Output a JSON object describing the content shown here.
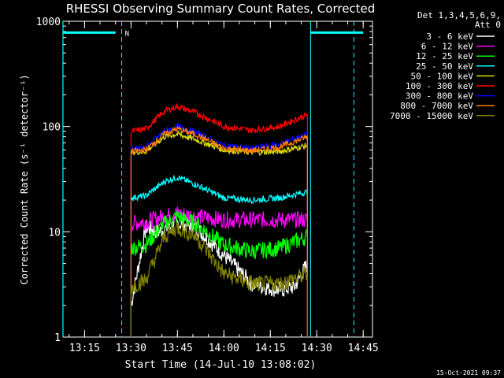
{
  "chart_data": {
    "type": "line",
    "title": "RHESSI Observing Summary Count Rates, Corrected",
    "xlabel": "Start Time (14-Jul-10 13:08:02)",
    "ylabel": "Corrected Count Rate (s⁻¹ detector⁻¹)",
    "y_scale": "log",
    "ylim": [
      1,
      1000
    ],
    "xlim": [
      "13:08:02",
      "14:48:00"
    ],
    "x_ticks": [
      "13:15",
      "13:30",
      "13:45",
      "14:00",
      "14:15",
      "14:30",
      "14:45"
    ],
    "y_ticks": [
      "1",
      "10",
      "100",
      "1000"
    ],
    "grid": false,
    "legend_position": "top-right",
    "legend_header": [
      "Det 1,3,4,5,6,9,",
      "Att 0"
    ],
    "series": [
      {
        "name": "3 - 6 keV",
        "color": "#ffffff",
        "values": [
          [
            13.5,
            2
          ],
          [
            13.58,
            11
          ],
          [
            13.65,
            10
          ],
          [
            13.75,
            12
          ],
          [
            13.85,
            11
          ],
          [
            14.0,
            6
          ],
          [
            14.15,
            3.2
          ],
          [
            14.3,
            2.8
          ],
          [
            14.38,
            3
          ],
          [
            14.42,
            4
          ],
          [
            14.45,
            5
          ]
        ]
      },
      {
        "name": "6 - 12 keV",
        "color": "#ff00ff",
        "values": [
          [
            13.5,
            12
          ],
          [
            13.58,
            12.5
          ],
          [
            13.68,
            14
          ],
          [
            13.75,
            15
          ],
          [
            13.85,
            14
          ],
          [
            14.0,
            13
          ],
          [
            14.15,
            13
          ],
          [
            14.3,
            13
          ],
          [
            14.45,
            13
          ]
        ]
      },
      {
        "name": "12 - 25 keV",
        "color": "#00ff00",
        "values": [
          [
            13.5,
            7
          ],
          [
            13.58,
            7.5
          ],
          [
            13.68,
            12
          ],
          [
            13.75,
            14
          ],
          [
            13.85,
            12
          ],
          [
            14.0,
            7.5
          ],
          [
            14.15,
            6.5
          ],
          [
            14.3,
            7
          ],
          [
            14.45,
            9
          ]
        ]
      },
      {
        "name": "25 - 50 keV",
        "color": "#00ffff",
        "values": [
          [
            13.5,
            21
          ],
          [
            13.58,
            22
          ],
          [
            13.68,
            30
          ],
          [
            13.75,
            33
          ],
          [
            13.85,
            28
          ],
          [
            14.0,
            21
          ],
          [
            14.15,
            20
          ],
          [
            14.3,
            21
          ],
          [
            14.45,
            24
          ]
        ]
      },
      {
        "name": "50 - 100 keV",
        "color": "#dddd00",
        "values": [
          [
            13.5,
            57
          ],
          [
            13.58,
            58
          ],
          [
            13.68,
            80
          ],
          [
            13.75,
            85
          ],
          [
            13.85,
            75
          ],
          [
            14.0,
            60
          ],
          [
            14.15,
            57
          ],
          [
            14.3,
            58
          ],
          [
            14.45,
            66
          ]
        ]
      },
      {
        "name": "100 - 300 keV",
        "color": "#ff0000",
        "values": [
          [
            13.5,
            90
          ],
          [
            13.58,
            95
          ],
          [
            13.68,
            140
          ],
          [
            13.75,
            155
          ],
          [
            13.85,
            135
          ],
          [
            14.0,
            100
          ],
          [
            14.15,
            92
          ],
          [
            14.3,
            100
          ],
          [
            14.45,
            130
          ]
        ]
      },
      {
        "name": "300 - 800 keV",
        "color": "#0000ff",
        "values": [
          [
            13.5,
            62
          ],
          [
            13.58,
            63
          ],
          [
            13.68,
            90
          ],
          [
            13.75,
            100
          ],
          [
            13.85,
            88
          ],
          [
            14.0,
            66
          ],
          [
            14.15,
            62
          ],
          [
            14.3,
            68
          ],
          [
            14.45,
            85
          ]
        ]
      },
      {
        "name": "800 - 7000 keV",
        "color": "#ff8000",
        "values": [
          [
            13.5,
            58
          ],
          [
            13.58,
            60
          ],
          [
            13.68,
            85
          ],
          [
            13.75,
            95
          ],
          [
            13.85,
            84
          ],
          [
            14.0,
            62
          ],
          [
            14.15,
            59
          ],
          [
            14.3,
            64
          ],
          [
            14.45,
            80
          ]
        ]
      },
      {
        "name": "7000 - 15000 keV",
        "color": "#808000",
        "values": [
          [
            13.5,
            3
          ],
          [
            13.58,
            3.5
          ],
          [
            13.68,
            9
          ],
          [
            13.75,
            11
          ],
          [
            13.85,
            9
          ],
          [
            14.0,
            4
          ],
          [
            14.15,
            3.2
          ],
          [
            14.3,
            3.2
          ],
          [
            14.45,
            4
          ]
        ]
      }
    ],
    "annotations": {
      "night_segments": [
        [
          "13:08",
          "13:25"
        ],
        [
          "14:28",
          "14:45"
        ]
      ],
      "night_level": 780,
      "saa_marker": "N",
      "saa_marker_time": "13:27",
      "dashed_lines": [
        "13:27",
        "14:42"
      ],
      "solid_lines": [
        "13:08",
        "14:28"
      ]
    }
  },
  "footer": {
    "timestamp": "15-Oct-2021 09:37"
  }
}
